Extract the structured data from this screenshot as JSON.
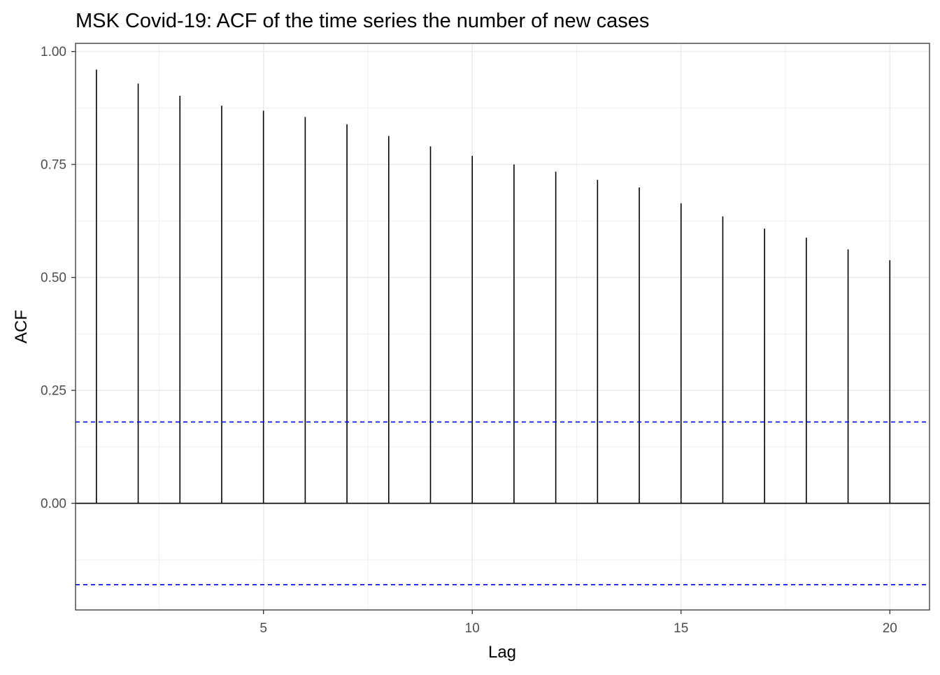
{
  "chart_data": {
    "type": "bar",
    "title": "MSK Covid-19: ACF of the time series the number of new cases",
    "xlabel": "Lag",
    "ylabel": "ACF",
    "x": [
      1,
      2,
      3,
      4,
      5,
      6,
      7,
      8,
      9,
      10,
      11,
      12,
      13,
      14,
      15,
      16,
      17,
      18,
      19,
      20
    ],
    "values": [
      0.96,
      0.929,
      0.902,
      0.88,
      0.869,
      0.855,
      0.839,
      0.813,
      0.79,
      0.769,
      0.75,
      0.734,
      0.716,
      0.699,
      0.664,
      0.635,
      0.608,
      0.588,
      0.562,
      0.538
    ],
    "xlim": [
      0.5,
      20.95
    ],
    "ylim": [
      -0.236,
      1.018
    ],
    "x_ticks": [
      5,
      10,
      15,
      20
    ],
    "x_tick_labels": [
      "5",
      "10",
      "15",
      "20"
    ],
    "y_ticks": [
      0,
      0.25,
      0.5,
      0.75,
      1.0
    ],
    "y_tick_labels": [
      "0.00",
      "0.25",
      "0.50",
      "0.75",
      "1.00"
    ],
    "confidence_bounds": [
      0.18,
      -0.18
    ],
    "grid": true,
    "colors": {
      "bars": "#000000",
      "confidence": "#0000ff",
      "grid": "#ebebeb",
      "panel_border": "#333333"
    }
  }
}
